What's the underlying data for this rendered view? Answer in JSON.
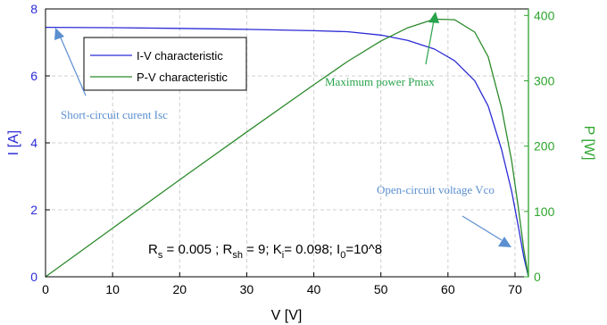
{
  "chart_data": {
    "type": "line",
    "xlabel": "V [V]",
    "ylabel_left": "I [A]",
    "ylabel_right": "P [W]",
    "xlim": [
      0,
      72
    ],
    "ylim_left": [
      0,
      8
    ],
    "ylim_right": [
      0,
      410
    ],
    "x_ticks": [
      0,
      10,
      20,
      30,
      40,
      50,
      60,
      70
    ],
    "y_left_ticks": [
      0,
      2,
      4,
      6,
      8
    ],
    "y_right_ticks": [
      0,
      100,
      200,
      300,
      400
    ],
    "grid": true,
    "legend_position": "top-left",
    "colors": {
      "iv": "#2b2bd6",
      "pv": "#2b8a2b",
      "axis_right": "#2ea52e",
      "annot_blue": "#5b8fd0",
      "annot_green": "#27a34a"
    },
    "series": [
      {
        "name": "I-V characteristic",
        "axis": "left",
        "x": [
          0,
          10,
          20,
          30,
          40,
          45,
          50,
          54,
          58,
          61,
          64,
          66,
          68,
          69.5,
          70.5,
          71.3,
          72
        ],
        "y": [
          7.45,
          7.44,
          7.42,
          7.39,
          7.35,
          7.32,
          7.22,
          7.06,
          6.8,
          6.45,
          5.85,
          5.1,
          3.8,
          2.55,
          1.5,
          0.6,
          0
        ]
      },
      {
        "name": "P-V characteristic",
        "axis": "right",
        "x": [
          0,
          10,
          20,
          30,
          40,
          45,
          50,
          54,
          58,
          61,
          64,
          66,
          68,
          69.5,
          70.5,
          71.3,
          72
        ],
        "y": [
          0,
          74.4,
          148.4,
          221.7,
          294,
          329.4,
          361,
          381.2,
          394.4,
          393.5,
          374.4,
          336.6,
          258.4,
          177.2,
          105.8,
          42.8,
          0
        ]
      }
    ],
    "annotations": {
      "isc": "Short-circuit curent Isc",
      "pmax": "Maximum power Pmax",
      "voc": "Open-circuit voltage Vco"
    },
    "params": {
      "rs_sym": "R",
      "rs_sub": "s",
      "rs_val": " = 0.005 ; ",
      "rsh_sym": "R",
      "rsh_sub": "sh",
      "rsh_val": " = 9; ",
      "ki_sym": "K",
      "ki_sub": "i",
      "ki_val": "= 0.098; ",
      "i0_sym": "I",
      "i0_sub": "0",
      "i0_val": "=10^8"
    }
  }
}
